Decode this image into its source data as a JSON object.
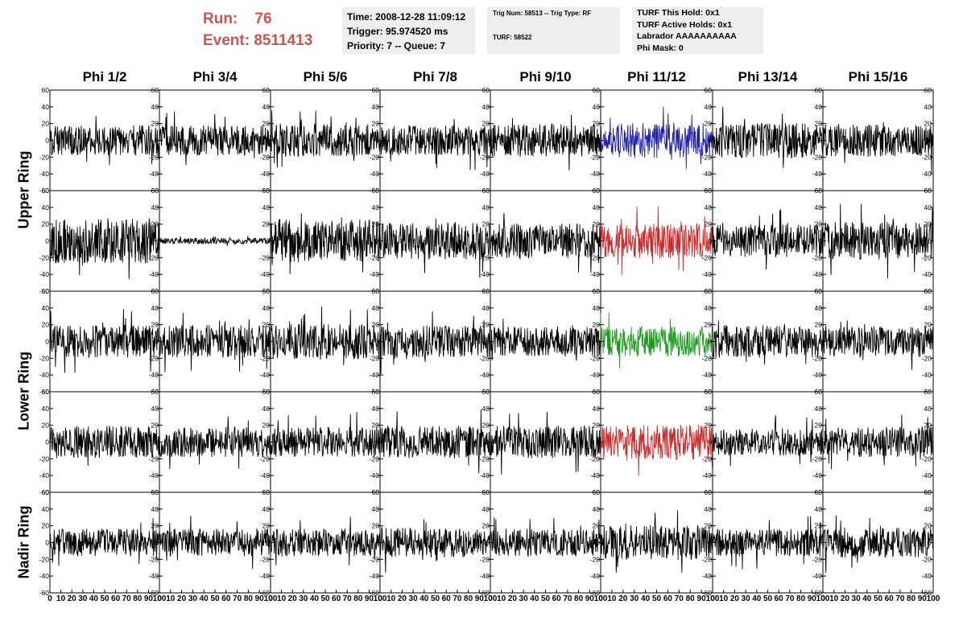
{
  "header": {
    "run_label": "Run:",
    "run_value": "76",
    "event_label": "Event:",
    "event_value": "8511413",
    "box1": {
      "line1": "Time: 2008-12-28 11:09:12",
      "line2": "Trigger: 95.974520 ms",
      "line3": "Priority: 7 -- Queue: 7"
    },
    "box2": {
      "line1": "Trig Num: 58513 -- Trig Type: RF",
      "line2": "TURF: 58522"
    },
    "box3": {
      "line1": "TURF This Hold: 0x1",
      "line2": "TURF Active Holds: 0x1",
      "line3": "Labrador AAAAAAAAAA",
      "line4": "Phi Mask: 0"
    },
    "colors": {
      "run_text": "#d0534f",
      "box_bg": "#eeeeee"
    }
  },
  "chart_data": {
    "type": "line",
    "columns": [
      "Phi 1/2",
      "Phi 3/4",
      "Phi 5/6",
      "Phi 7/8",
      "Phi 9/10",
      "Phi 11/12",
      "Phi 13/14",
      "Phi 15/16"
    ],
    "rows": [
      "Upper Ring",
      "Upper Ring",
      "Lower Ring",
      "Lower Ring",
      "Nadir Ring"
    ],
    "ring_labels": [
      "Upper Ring",
      "Lower Ring",
      "Nadir Ring"
    ],
    "ylim": [
      -60,
      60
    ],
    "yticks": [
      -60,
      -40,
      -20,
      0,
      20,
      40,
      60
    ],
    "xlim": [
      0,
      100
    ],
    "xticks": [
      0,
      10,
      20,
      30,
      40,
      50,
      60,
      70,
      80,
      90,
      100
    ],
    "waveform_samples": 260,
    "amplitudes": [
      [
        12,
        12,
        13,
        12,
        13,
        14,
        14,
        13
      ],
      [
        18,
        2.5,
        17,
        15,
        14,
        14,
        13,
        15
      ],
      [
        13,
        13,
        14,
        13,
        12,
        12,
        13,
        12
      ],
      [
        13,
        12,
        12,
        13,
        13,
        14,
        11,
        12
      ],
      [
        11,
        11,
        11,
        12,
        11,
        14,
        11,
        12
      ]
    ],
    "trace_colors": [
      [
        "#000000",
        "#000000",
        "#000000",
        "#000000",
        "#000000",
        "#1f1fa8",
        "#000000",
        "#000000"
      ],
      [
        "#000000",
        "#000000",
        "#000000",
        "#000000",
        "#000000",
        "#cc2b2b",
        "#000000",
        "#000000"
      ],
      [
        "#000000",
        "#000000",
        "#000000",
        "#000000",
        "#000000",
        "#1e9a1e",
        "#000000",
        "#000000"
      ],
      [
        "#000000",
        "#000000",
        "#000000",
        "#000000",
        "#000000",
        "#cc2b2b",
        "#000000",
        "#000000"
      ],
      [
        "#000000",
        "#000000",
        "#000000",
        "#000000",
        "#000000",
        "#000000",
        "#000000",
        "#000000"
      ]
    ],
    "grid": false
  }
}
